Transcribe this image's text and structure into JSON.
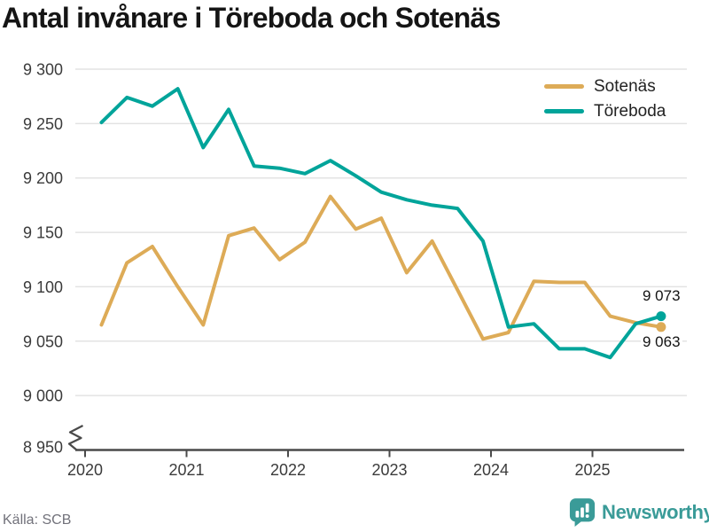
{
  "title": "Antal invånare i Töreboda och Sotenäs",
  "source": "Källa: SCB",
  "branding": {
    "name": "Newsworthy",
    "color": "#3A9B98"
  },
  "colors": {
    "sotenas": "#DDAB57",
    "toreboda": "#00A49A",
    "grid": "#E3E3E3",
    "axis": "#4A4A4A",
    "tick_text": "#3B3B3B",
    "end_label_text": "#131313"
  },
  "legend": [
    {
      "label": "Sotenäs",
      "color": "#DDAB57"
    },
    {
      "label": "Töreboda",
      "color": "#00A49A"
    }
  ],
  "chart_data": {
    "type": "line",
    "title": "Antal invånare i Töreboda och Sotenäs",
    "grid": "horizontal",
    "legend_position": "top-right",
    "y_axis_break": true,
    "ylim": [
      8950,
      9300
    ],
    "y_ticks": [
      {
        "value": 9300,
        "label": "9 300"
      },
      {
        "value": 9250,
        "label": "9 250"
      },
      {
        "value": 9200,
        "label": "9 200"
      },
      {
        "value": 9150,
        "label": "9 150"
      },
      {
        "value": 9100,
        "label": "9 100"
      },
      {
        "value": 9050,
        "label": "9 050"
      },
      {
        "value": 9000,
        "label": "9 000"
      },
      {
        "value": 8950,
        "label": "8 950"
      }
    ],
    "x_tick_labels": [
      "2020",
      "2021",
      "2022",
      "2023",
      "2024",
      "2025"
    ],
    "x_quarters": [
      "2020 Q1",
      "2020 Q2",
      "2020 Q3",
      "2020 Q4",
      "2021 Q1",
      "2021 Q2",
      "2021 Q3",
      "2021 Q4",
      "2022 Q1",
      "2022 Q2",
      "2022 Q3",
      "2022 Q4",
      "2023 Q1",
      "2023 Q2",
      "2023 Q3",
      "2023 Q4",
      "2024 Q1",
      "2024 Q2",
      "2024 Q3",
      "2024 Q4",
      "2025 Q1",
      "2025 Q2",
      "2025 Q3"
    ],
    "series": [
      {
        "name": "Sotenäs",
        "color": "#DDAB57",
        "end_label": "9 063",
        "values": [
          9065,
          9122,
          9137,
          9100,
          9065,
          9147,
          9154,
          9125,
          9141,
          9183,
          9153,
          9163,
          9113,
          9142,
          9097,
          9052,
          9058,
          9105,
          9104,
          9104,
          9073,
          9067,
          9063
        ]
      },
      {
        "name": "Töreboda",
        "color": "#00A49A",
        "end_label": "9 073",
        "values": [
          9251,
          9274,
          9266,
          9282,
          9228,
          9263,
          9211,
          9209,
          9204,
          9216,
          9202,
          9187,
          9180,
          9175,
          9172,
          9142,
          9063,
          9066,
          9043,
          9043,
          9035,
          9066,
          9073
        ]
      }
    ]
  }
}
